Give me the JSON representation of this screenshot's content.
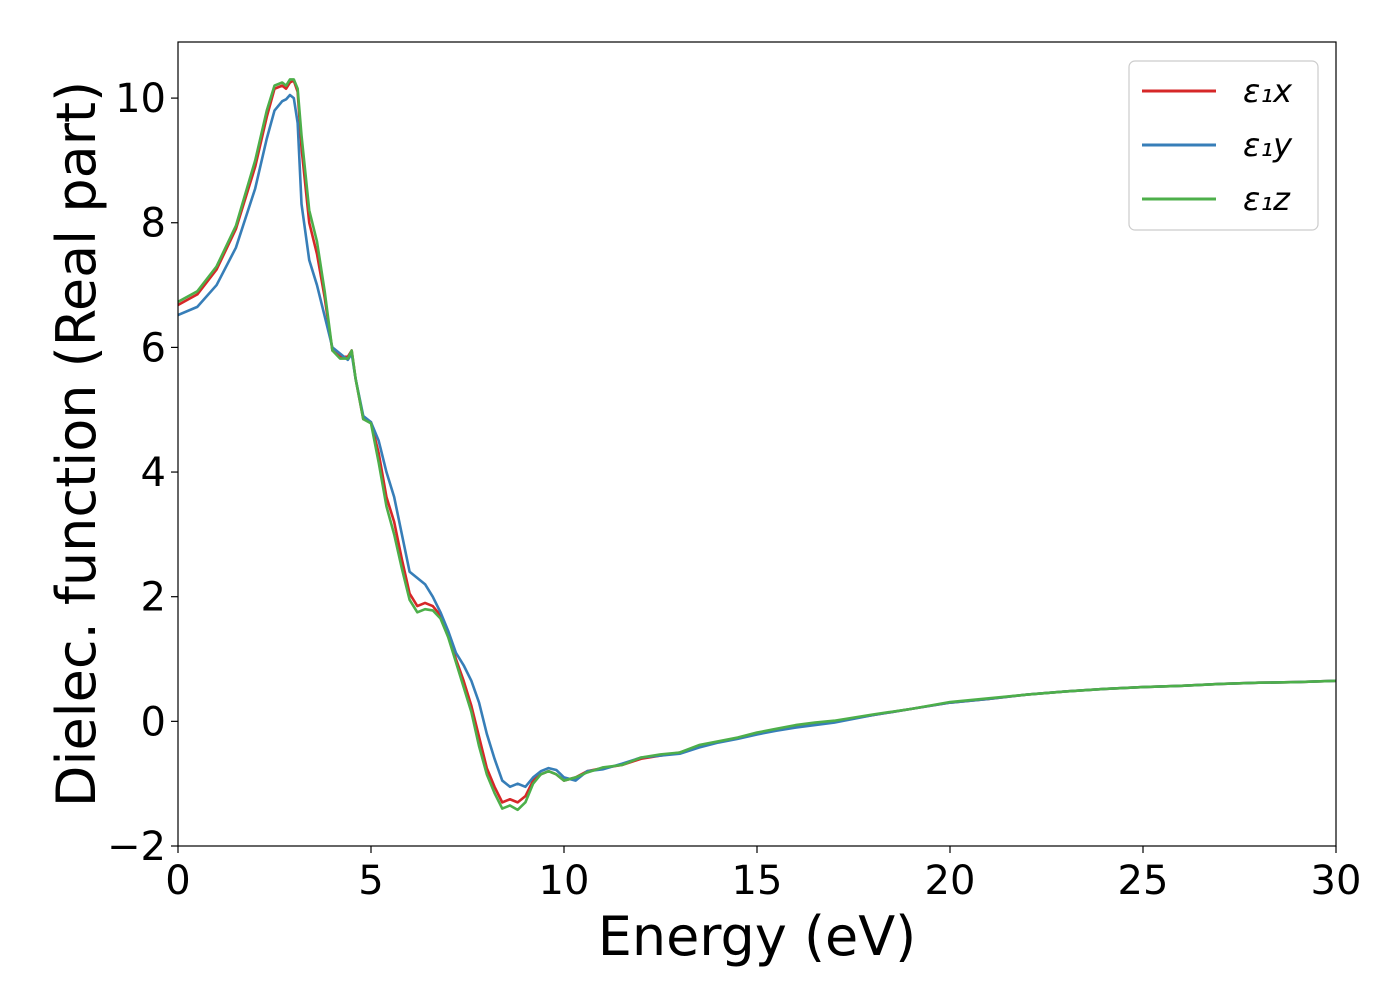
{
  "chart_data": {
    "type": "line",
    "title": "",
    "xlabel": "Energy (eV)",
    "ylabel": "Dielec. function (Real part)",
    "xlim": [
      0,
      30
    ],
    "ylim": [
      -2,
      10.9
    ],
    "xticks": [
      0,
      5,
      10,
      15,
      20,
      25,
      30
    ],
    "yticks": [
      -2,
      0,
      2,
      4,
      6,
      8,
      10
    ],
    "xtick_labels": [
      "0",
      "5",
      "10",
      "15",
      "20",
      "25",
      "30"
    ],
    "ytick_labels": [
      "−2",
      "0",
      "2",
      "4",
      "6",
      "8",
      "10"
    ],
    "grid": false,
    "legend_placement": "top-right",
    "series": [
      {
        "name": "ε₁x",
        "color": "#d62728",
        "x": [
          0,
          0.5,
          1.0,
          1.5,
          2.0,
          2.3,
          2.5,
          2.7,
          2.8,
          2.9,
          3.0,
          3.1,
          3.2,
          3.4,
          3.6,
          3.8,
          4.0,
          4.2,
          4.4,
          4.5,
          4.6,
          4.8,
          5.0,
          5.2,
          5.4,
          5.6,
          5.8,
          6.0,
          6.2,
          6.4,
          6.6,
          6.8,
          7.0,
          7.2,
          7.4,
          7.6,
          7.8,
          8.0,
          8.2,
          8.4,
          8.6,
          8.8,
          9.0,
          9.2,
          9.4,
          9.6,
          9.8,
          10.0,
          10.3,
          10.6,
          11.0,
          11.5,
          12.0,
          12.5,
          13.0,
          13.5,
          14.0,
          14.5,
          15.0,
          15.5,
          16.0,
          16.5,
          17.0,
          17.5,
          18.0,
          19.0,
          20.0,
          21.0,
          22.0,
          23.0,
          24.0,
          25.0,
          26.0,
          27.0,
          28.0,
          29.0,
          30.0
        ],
        "y": [
          6.68,
          6.85,
          7.25,
          7.9,
          8.9,
          9.7,
          10.15,
          10.2,
          10.15,
          10.25,
          10.28,
          10.1,
          9.2,
          8.0,
          7.5,
          6.8,
          5.95,
          5.85,
          5.85,
          5.95,
          5.5,
          4.85,
          4.8,
          4.3,
          3.6,
          3.2,
          2.6,
          2.05,
          1.85,
          1.9,
          1.85,
          1.7,
          1.4,
          1.0,
          0.65,
          0.25,
          -0.25,
          -0.75,
          -1.05,
          -1.3,
          -1.25,
          -1.3,
          -1.2,
          -0.95,
          -0.85,
          -0.8,
          -0.85,
          -0.95,
          -0.9,
          -0.8,
          -0.75,
          -0.7,
          -0.6,
          -0.55,
          -0.5,
          -0.4,
          -0.33,
          -0.27,
          -0.2,
          -0.13,
          -0.07,
          -0.03,
          0.0,
          0.05,
          0.1,
          0.2,
          0.3,
          0.36,
          0.43,
          0.48,
          0.52,
          0.55,
          0.57,
          0.6,
          0.62,
          0.63,
          0.65
        ]
      },
      {
        "name": "ε₁y",
        "color": "#377eb8",
        "x": [
          0,
          0.5,
          1.0,
          1.5,
          2.0,
          2.3,
          2.5,
          2.7,
          2.8,
          2.9,
          3.0,
          3.1,
          3.2,
          3.4,
          3.6,
          3.8,
          4.0,
          4.2,
          4.4,
          4.5,
          4.6,
          4.8,
          5.0,
          5.2,
          5.4,
          5.6,
          5.8,
          6.0,
          6.2,
          6.4,
          6.6,
          6.8,
          7.0,
          7.2,
          7.4,
          7.6,
          7.8,
          8.0,
          8.2,
          8.4,
          8.6,
          8.8,
          9.0,
          9.2,
          9.4,
          9.6,
          9.8,
          10.0,
          10.3,
          10.6,
          11.0,
          11.5,
          12.0,
          12.5,
          13.0,
          13.5,
          14.0,
          14.5,
          15.0,
          15.5,
          16.0,
          16.5,
          17.0,
          17.5,
          18.0,
          19.0,
          20.0,
          21.0,
          22.0,
          23.0,
          24.0,
          25.0,
          26.0,
          27.0,
          28.0,
          29.0,
          30.0
        ],
        "y": [
          6.52,
          6.65,
          7.0,
          7.6,
          8.55,
          9.35,
          9.8,
          9.95,
          9.98,
          10.05,
          10.0,
          9.6,
          8.3,
          7.4,
          7.0,
          6.5,
          6.0,
          5.9,
          5.8,
          5.9,
          5.5,
          4.9,
          4.8,
          4.5,
          4.0,
          3.6,
          3.0,
          2.4,
          2.3,
          2.2,
          2.0,
          1.75,
          1.45,
          1.1,
          0.9,
          0.65,
          0.3,
          -0.2,
          -0.6,
          -0.95,
          -1.05,
          -1.0,
          -1.05,
          -0.9,
          -0.8,
          -0.75,
          -0.78,
          -0.9,
          -0.95,
          -0.8,
          -0.77,
          -0.68,
          -0.58,
          -0.55,
          -0.52,
          -0.42,
          -0.34,
          -0.28,
          -0.21,
          -0.15,
          -0.1,
          -0.06,
          -0.02,
          0.04,
          0.1,
          0.2,
          0.3,
          0.36,
          0.43,
          0.48,
          0.52,
          0.55,
          0.57,
          0.6,
          0.62,
          0.63,
          0.65
        ]
      },
      {
        "name": "ε₁z",
        "color": "#4daf4a",
        "x": [
          0,
          0.5,
          1.0,
          1.5,
          2.0,
          2.3,
          2.5,
          2.7,
          2.8,
          2.9,
          3.0,
          3.1,
          3.2,
          3.4,
          3.6,
          3.8,
          4.0,
          4.2,
          4.4,
          4.5,
          4.6,
          4.8,
          5.0,
          5.2,
          5.4,
          5.6,
          5.8,
          6.0,
          6.2,
          6.4,
          6.6,
          6.8,
          7.0,
          7.2,
          7.4,
          7.6,
          7.8,
          8.0,
          8.2,
          8.4,
          8.6,
          8.8,
          9.0,
          9.2,
          9.4,
          9.6,
          9.8,
          10.0,
          10.3,
          10.6,
          11.0,
          11.5,
          12.0,
          12.5,
          13.0,
          13.5,
          14.0,
          14.5,
          15.0,
          15.5,
          16.0,
          16.5,
          17.0,
          17.5,
          18.0,
          19.0,
          20.0,
          21.0,
          22.0,
          23.0,
          24.0,
          25.0,
          26.0,
          27.0,
          28.0,
          29.0,
          30.0
        ],
        "y": [
          6.73,
          6.9,
          7.3,
          7.95,
          9.0,
          9.8,
          10.2,
          10.25,
          10.2,
          10.3,
          10.3,
          10.15,
          9.4,
          8.2,
          7.7,
          6.9,
          5.95,
          5.82,
          5.82,
          5.95,
          5.5,
          4.85,
          4.78,
          4.15,
          3.45,
          3.0,
          2.45,
          1.95,
          1.75,
          1.8,
          1.78,
          1.65,
          1.35,
          0.95,
          0.55,
          0.15,
          -0.4,
          -0.85,
          -1.15,
          -1.4,
          -1.35,
          -1.42,
          -1.3,
          -1.0,
          -0.85,
          -0.8,
          -0.85,
          -0.95,
          -0.9,
          -0.82,
          -0.74,
          -0.7,
          -0.58,
          -0.53,
          -0.5,
          -0.38,
          -0.32,
          -0.26,
          -0.18,
          -0.12,
          -0.06,
          -0.02,
          0.01,
          0.06,
          0.11,
          0.2,
          0.31,
          0.37,
          0.43,
          0.48,
          0.52,
          0.55,
          0.57,
          0.6,
          0.62,
          0.63,
          0.65
        ]
      }
    ]
  }
}
